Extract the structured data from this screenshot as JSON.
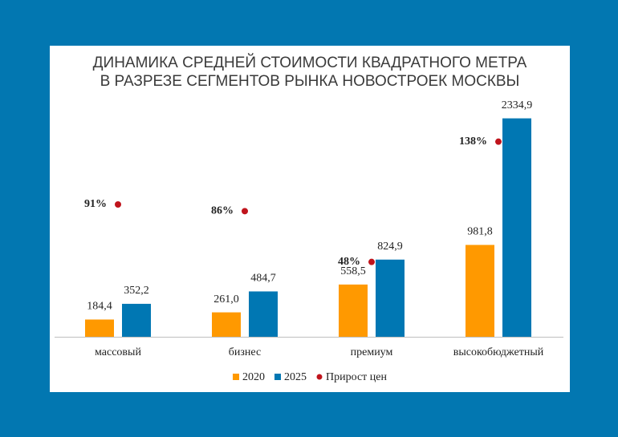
{
  "chart_data": {
    "type": "bar",
    "title": [
      "ДИНАМИКА СРЕДНЕЙ СТОИМОСТИ КВАДРАТНОГО МЕТРА",
      "В РАЗРЕЗЕ СЕГМЕНТОВ РЫНКА НОВОСТРОЕК МОСКВЫ"
    ],
    "categories": [
      "массовый",
      "бизнес",
      "премиум",
      "высокобюджетный"
    ],
    "series": [
      {
        "name": "2020",
        "color": "#ff9900",
        "values": [
          184.4,
          261.0,
          558.5,
          981.8
        ],
        "value_labels": [
          "184,4",
          "261,0",
          "558,5",
          "981,8"
        ]
      },
      {
        "name": "2025",
        "color": "#0077b3",
        "values": [
          352.2,
          484.7,
          824.9,
          2334.9
        ],
        "value_labels": [
          "352,2",
          "484,7",
          "824,9",
          "2334,9"
        ]
      },
      {
        "name": "Прирост цен",
        "type": "scatter",
        "axis": "y2",
        "color": "#c0141c",
        "values": [
          91,
          86,
          48,
          138
        ],
        "value_labels": [
          "91%",
          "86%",
          "48%",
          "138%"
        ]
      }
    ],
    "ylim": [
      0,
      2400
    ],
    "y2lim": [
      -8,
      160
    ],
    "legend": "bottom"
  }
}
